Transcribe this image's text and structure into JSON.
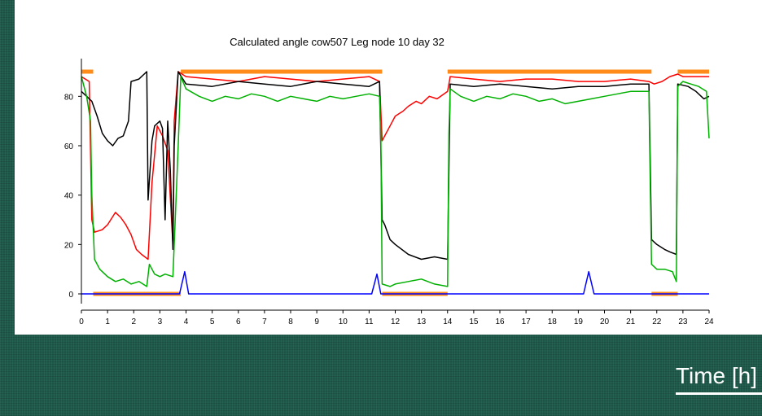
{
  "footer": {
    "axis_caption": "Time [h]"
  },
  "chart_data": {
    "type": "line",
    "title": "Calculated angle cow507 Leg node 10  day 32",
    "xlabel": "",
    "ylabel": "",
    "xlim": [
      0,
      24
    ],
    "ylim": [
      0,
      90
    ],
    "x_ticks": [
      0,
      1,
      2,
      3,
      4,
      5,
      6,
      7,
      8,
      9,
      10,
      11,
      12,
      13,
      14,
      15,
      16,
      17,
      18,
      19,
      20,
      21,
      22,
      23,
      24
    ],
    "x_tick_labels": [
      "0",
      "1",
      "2",
      "3",
      "4",
      "5",
      "6",
      "7",
      "8",
      "9",
      "10",
      "11",
      "12",
      "13",
      "14",
      "15",
      "16",
      "17",
      "18",
      "19",
      "20",
      "21",
      "22",
      "23",
      "24"
    ],
    "y_ticks": [
      0,
      20,
      40,
      60,
      80
    ],
    "y_tick_labels": [
      "0",
      "20",
      "40",
      "60",
      "80"
    ],
    "grid": false,
    "legend": "none",
    "series": [
      {
        "color": "#ff8c1a",
        "style": "thick",
        "segments": [
          [
            [
              0,
              90
            ],
            [
              0.45,
              90
            ]
          ],
          [
            [
              0.45,
              0
            ],
            [
              3.8,
              0
            ]
          ],
          [
            [
              3.8,
              90
            ],
            [
              11.5,
              90
            ]
          ],
          [
            [
              11.5,
              0
            ],
            [
              14.0,
              0
            ]
          ],
          [
            [
              14.0,
              90
            ],
            [
              21.8,
              90
            ]
          ],
          [
            [
              21.8,
              0
            ],
            [
              22.8,
              0
            ]
          ],
          [
            [
              22.8,
              90
            ],
            [
              24.0,
              90
            ]
          ]
        ]
      },
      {
        "color": "#0000ff",
        "points": [
          [
            0,
            0
          ],
          [
            3.75,
            0
          ],
          [
            3.95,
            9
          ],
          [
            4.1,
            0
          ],
          [
            11.1,
            0
          ],
          [
            11.3,
            8
          ],
          [
            11.45,
            0
          ],
          [
            19.2,
            0
          ],
          [
            19.4,
            9
          ],
          [
            19.6,
            0
          ],
          [
            24.0,
            0
          ]
        ]
      },
      {
        "color": "#ff0000",
        "points": [
          [
            0,
            88
          ],
          [
            0.3,
            86
          ],
          [
            0.4,
            30
          ],
          [
            0.5,
            25
          ],
          [
            0.8,
            26
          ],
          [
            1.0,
            28
          ],
          [
            1.3,
            33
          ],
          [
            1.5,
            31
          ],
          [
            1.7,
            28
          ],
          [
            1.9,
            24
          ],
          [
            2.1,
            18
          ],
          [
            2.3,
            16
          ],
          [
            2.55,
            14
          ],
          [
            2.7,
            45
          ],
          [
            2.9,
            68
          ],
          [
            3.1,
            64
          ],
          [
            3.3,
            58
          ],
          [
            3.5,
            20
          ],
          [
            3.55,
            70
          ],
          [
            3.7,
            90
          ],
          [
            4.0,
            88
          ],
          [
            5.0,
            87
          ],
          [
            6.0,
            86
          ],
          [
            7.0,
            88
          ],
          [
            8.0,
            87
          ],
          [
            9.0,
            86
          ],
          [
            10.0,
            87
          ],
          [
            11.0,
            88
          ],
          [
            11.4,
            86
          ],
          [
            11.5,
            62
          ],
          [
            11.8,
            68
          ],
          [
            12.0,
            72
          ],
          [
            12.3,
            74
          ],
          [
            12.5,
            76
          ],
          [
            12.8,
            78
          ],
          [
            13.0,
            77
          ],
          [
            13.3,
            80
          ],
          [
            13.6,
            79
          ],
          [
            14.0,
            82
          ],
          [
            14.1,
            88
          ],
          [
            15.0,
            87
          ],
          [
            16.0,
            86
          ],
          [
            17.0,
            87
          ],
          [
            18.0,
            87
          ],
          [
            19.0,
            86
          ],
          [
            20.0,
            86
          ],
          [
            21.0,
            87
          ],
          [
            21.7,
            86
          ],
          [
            21.9,
            85
          ],
          [
            22.2,
            86
          ],
          [
            22.5,
            88
          ],
          [
            22.8,
            89
          ],
          [
            23.0,
            88
          ],
          [
            23.5,
            88
          ],
          [
            24.0,
            88
          ]
        ]
      },
      {
        "color": "#000000",
        "points": [
          [
            0,
            82
          ],
          [
            0.2,
            80
          ],
          [
            0.4,
            78
          ],
          [
            0.6,
            72
          ],
          [
            0.8,
            65
          ],
          [
            1.0,
            62
          ],
          [
            1.2,
            60
          ],
          [
            1.4,
            63
          ],
          [
            1.6,
            64
          ],
          [
            1.8,
            70
          ],
          [
            1.9,
            86
          ],
          [
            2.2,
            87
          ],
          [
            2.5,
            90
          ],
          [
            2.55,
            38
          ],
          [
            2.7,
            62
          ],
          [
            2.8,
            68
          ],
          [
            3.0,
            70
          ],
          [
            3.1,
            67
          ],
          [
            3.2,
            30
          ],
          [
            3.3,
            70
          ],
          [
            3.4,
            50
          ],
          [
            3.5,
            18
          ],
          [
            3.55,
            60
          ],
          [
            3.7,
            90
          ],
          [
            4.0,
            85
          ],
          [
            5.0,
            84
          ],
          [
            6.0,
            86
          ],
          [
            7.0,
            85
          ],
          [
            8.0,
            84
          ],
          [
            9.0,
            86
          ],
          [
            10.0,
            85
          ],
          [
            11.0,
            84
          ],
          [
            11.4,
            86
          ],
          [
            11.5,
            30
          ],
          [
            11.6,
            28
          ],
          [
            11.8,
            22
          ],
          [
            12.0,
            20
          ],
          [
            12.5,
            16
          ],
          [
            13.0,
            14
          ],
          [
            13.5,
            15
          ],
          [
            14.0,
            14
          ],
          [
            14.1,
            85
          ],
          [
            15.0,
            84
          ],
          [
            16.0,
            85
          ],
          [
            17.0,
            84
          ],
          [
            18.0,
            83
          ],
          [
            19.0,
            84
          ],
          [
            20.0,
            84
          ],
          [
            21.0,
            85
          ],
          [
            21.7,
            85
          ],
          [
            21.8,
            22
          ],
          [
            22.0,
            20
          ],
          [
            22.3,
            18
          ],
          [
            22.5,
            17
          ],
          [
            22.75,
            16
          ],
          [
            22.8,
            85
          ],
          [
            23.2,
            84
          ],
          [
            23.5,
            82
          ],
          [
            23.8,
            79
          ],
          [
            24.0,
            80
          ]
        ]
      },
      {
        "color": "#00b000",
        "points": [
          [
            0,
            88
          ],
          [
            0.2,
            80
          ],
          [
            0.35,
            70
          ],
          [
            0.4,
            40
          ],
          [
            0.5,
            14
          ],
          [
            0.7,
            10
          ],
          [
            1.0,
            7
          ],
          [
            1.3,
            5
          ],
          [
            1.6,
            6
          ],
          [
            1.9,
            4
          ],
          [
            2.2,
            5
          ],
          [
            2.5,
            3
          ],
          [
            2.6,
            12
          ],
          [
            2.8,
            8
          ],
          [
            3.0,
            7
          ],
          [
            3.2,
            8
          ],
          [
            3.5,
            7
          ],
          [
            3.7,
            60
          ],
          [
            3.8,
            88
          ],
          [
            4.0,
            83
          ],
          [
            4.5,
            80
          ],
          [
            5.0,
            78
          ],
          [
            5.5,
            80
          ],
          [
            6.0,
            79
          ],
          [
            6.5,
            81
          ],
          [
            7.0,
            80
          ],
          [
            7.5,
            78
          ],
          [
            8.0,
            80
          ],
          [
            8.5,
            79
          ],
          [
            9.0,
            78
          ],
          [
            9.5,
            80
          ],
          [
            10.0,
            79
          ],
          [
            10.5,
            80
          ],
          [
            11.0,
            81
          ],
          [
            11.4,
            80
          ],
          [
            11.45,
            64
          ],
          [
            11.5,
            4
          ],
          [
            11.8,
            3
          ],
          [
            12.0,
            4
          ],
          [
            12.5,
            5
          ],
          [
            13.0,
            6
          ],
          [
            13.5,
            4
          ],
          [
            14.0,
            3
          ],
          [
            14.05,
            65
          ],
          [
            14.1,
            83
          ],
          [
            14.5,
            80
          ],
          [
            15.0,
            78
          ],
          [
            15.5,
            80
          ],
          [
            16.0,
            79
          ],
          [
            16.5,
            81
          ],
          [
            17.0,
            80
          ],
          [
            17.5,
            78
          ],
          [
            18.0,
            79
          ],
          [
            18.5,
            77
          ],
          [
            19.0,
            78
          ],
          [
            19.5,
            79
          ],
          [
            20.0,
            80
          ],
          [
            20.5,
            81
          ],
          [
            21.0,
            82
          ],
          [
            21.7,
            82
          ],
          [
            21.75,
            45
          ],
          [
            21.8,
            12
          ],
          [
            22.0,
            10
          ],
          [
            22.3,
            10
          ],
          [
            22.6,
            9
          ],
          [
            22.75,
            5
          ],
          [
            22.8,
            84
          ],
          [
            23.0,
            86
          ],
          [
            23.3,
            85
          ],
          [
            23.6,
            84
          ],
          [
            23.9,
            82
          ],
          [
            24.0,
            63
          ]
        ]
      }
    ]
  }
}
